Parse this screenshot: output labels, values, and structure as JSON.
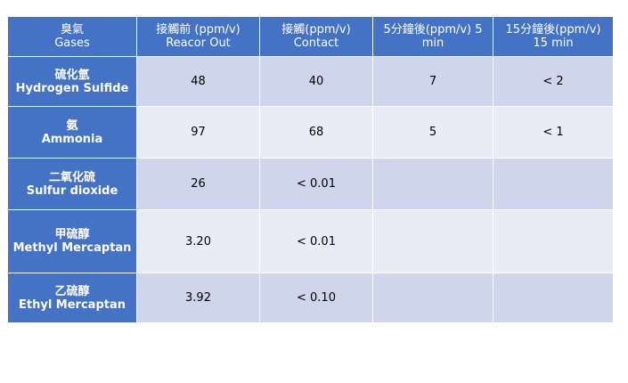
{
  "table": {
    "header": [
      [
        "臭氣",
        "Gases"
      ],
      [
        "接觸前 (ppm/v)",
        "Reacor Out"
      ],
      [
        "接觸(ppm/v)",
        "Contact"
      ],
      [
        "5分鐘後(ppm/v)  5",
        "min"
      ],
      [
        "15分鐘後(ppm/v)",
        "15 min"
      ]
    ],
    "rows": [
      {
        "gas": [
          "硫化氫",
          "Hydrogen Sulfide"
        ],
        "cells": [
          "48",
          "40",
          "7",
          "< 2"
        ]
      },
      {
        "gas": [
          "氨",
          "Ammonia"
        ],
        "cells": [
          "97",
          "68",
          "5",
          "< 1"
        ]
      },
      {
        "gas": [
          "二氧化硫",
          "Sulfur dioxide"
        ],
        "cells": [
          "26",
          "< 0.01"
        ]
      },
      {
        "gas": [
          "甲硫醇",
          "Methyl Mercaptan"
        ],
        "cells": [
          "3.20",
          "< 0.01"
        ]
      },
      {
        "gas": [
          "乙硫醇",
          "Ethyl Mercaptan"
        ],
        "cells": [
          "3.92",
          "< 0.10"
        ]
      }
    ]
  }
}
